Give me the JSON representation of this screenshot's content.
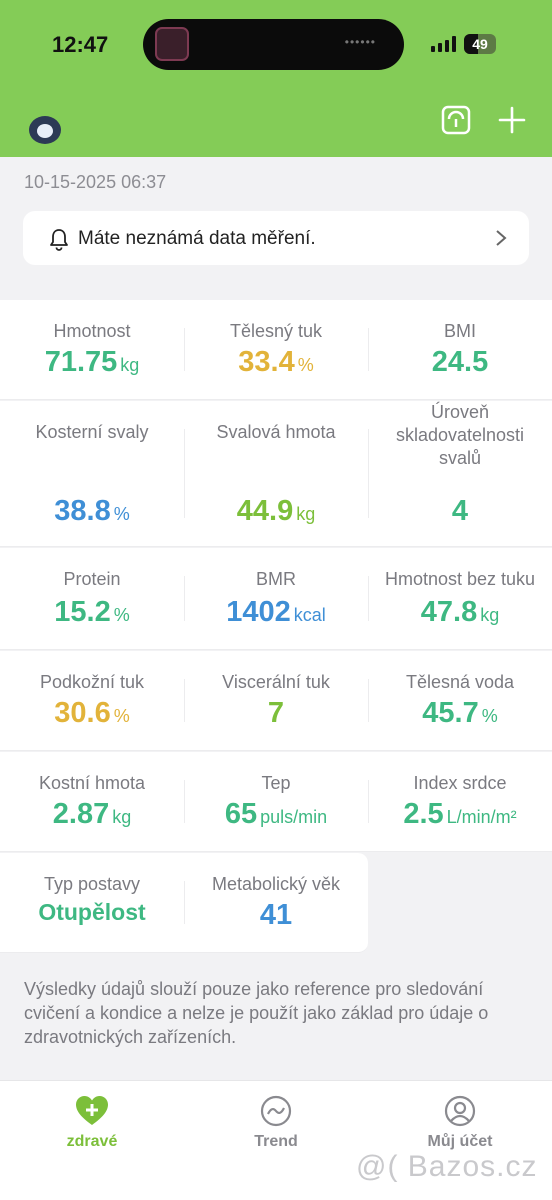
{
  "status_bar": {
    "time": "12:47",
    "battery": "49"
  },
  "header": {
    "device_icon": "scale-icon",
    "add_icon": "plus-icon"
  },
  "timestamp": "10-15-2025 06:37",
  "notice": {
    "text": "Máte neznámá data měření."
  },
  "metrics": [
    {
      "label": "Hmotnost",
      "value": "71.75",
      "unit": "kg",
      "color": "#3eb882"
    },
    {
      "label": "Tělesný tuk",
      "value": "33.4",
      "unit": "%",
      "color": "#e2b33a"
    },
    {
      "label": "BMI",
      "value": "24.5",
      "unit": "",
      "color": "#3eb882"
    },
    {
      "label": "Kosterní svaly",
      "value": "38.8",
      "unit": "%",
      "color": "#3f8fd6"
    },
    {
      "label": "Svalová hmota",
      "value": "44.9",
      "unit": "kg",
      "color": "#7cbf3a"
    },
    {
      "label": "Úroveň skladovatelnosti svalů",
      "value": "4",
      "unit": "",
      "color": "#3eb882"
    },
    {
      "label": "Protein",
      "value": "15.2",
      "unit": "%",
      "color": "#3eb882"
    },
    {
      "label": "BMR",
      "value": "1402",
      "unit": "kcal",
      "color": "#3f8fd6"
    },
    {
      "label": "Hmotnost bez tuku",
      "value": "47.8",
      "unit": "kg",
      "color": "#3eb882"
    },
    {
      "label": "Podkožní tuk",
      "value": "30.6",
      "unit": "%",
      "color": "#e2b33a"
    },
    {
      "label": "Viscerální tuk",
      "value": "7",
      "unit": "",
      "color": "#7cbf3a"
    },
    {
      "label": "Tělesná voda",
      "value": "45.7",
      "unit": "%",
      "color": "#3eb882"
    },
    {
      "label": "Kostní hmota",
      "value": "2.87",
      "unit": "kg",
      "color": "#3eb882"
    },
    {
      "label": "Tep",
      "value": "65",
      "unit": "puls/min",
      "color": "#3eb882"
    },
    {
      "label": "Index srdce",
      "value": "2.5",
      "unit": "L/min/m²",
      "color": "#3eb882"
    },
    {
      "label": "Typ postavy",
      "value": "Otupělost",
      "unit": "",
      "color": "#3eb882"
    },
    {
      "label": "Metabolický věk",
      "value": "41",
      "unit": "",
      "color": "#3f8fd6"
    }
  ],
  "disclaimer": "Výsledky údajů slouží pouze jako reference pro sledování cvičení a kondice a nelze je použít jako základ pro údaje o zdravotnických zařízeních.",
  "tabs": [
    {
      "label": "zdravé",
      "icon": "heart-plus-icon",
      "active": true
    },
    {
      "label": "Trend",
      "icon": "trend-icon",
      "active": false
    },
    {
      "label": "Můj účet",
      "icon": "user-icon",
      "active": false
    }
  ],
  "watermark": "@( Bazos.cz"
}
